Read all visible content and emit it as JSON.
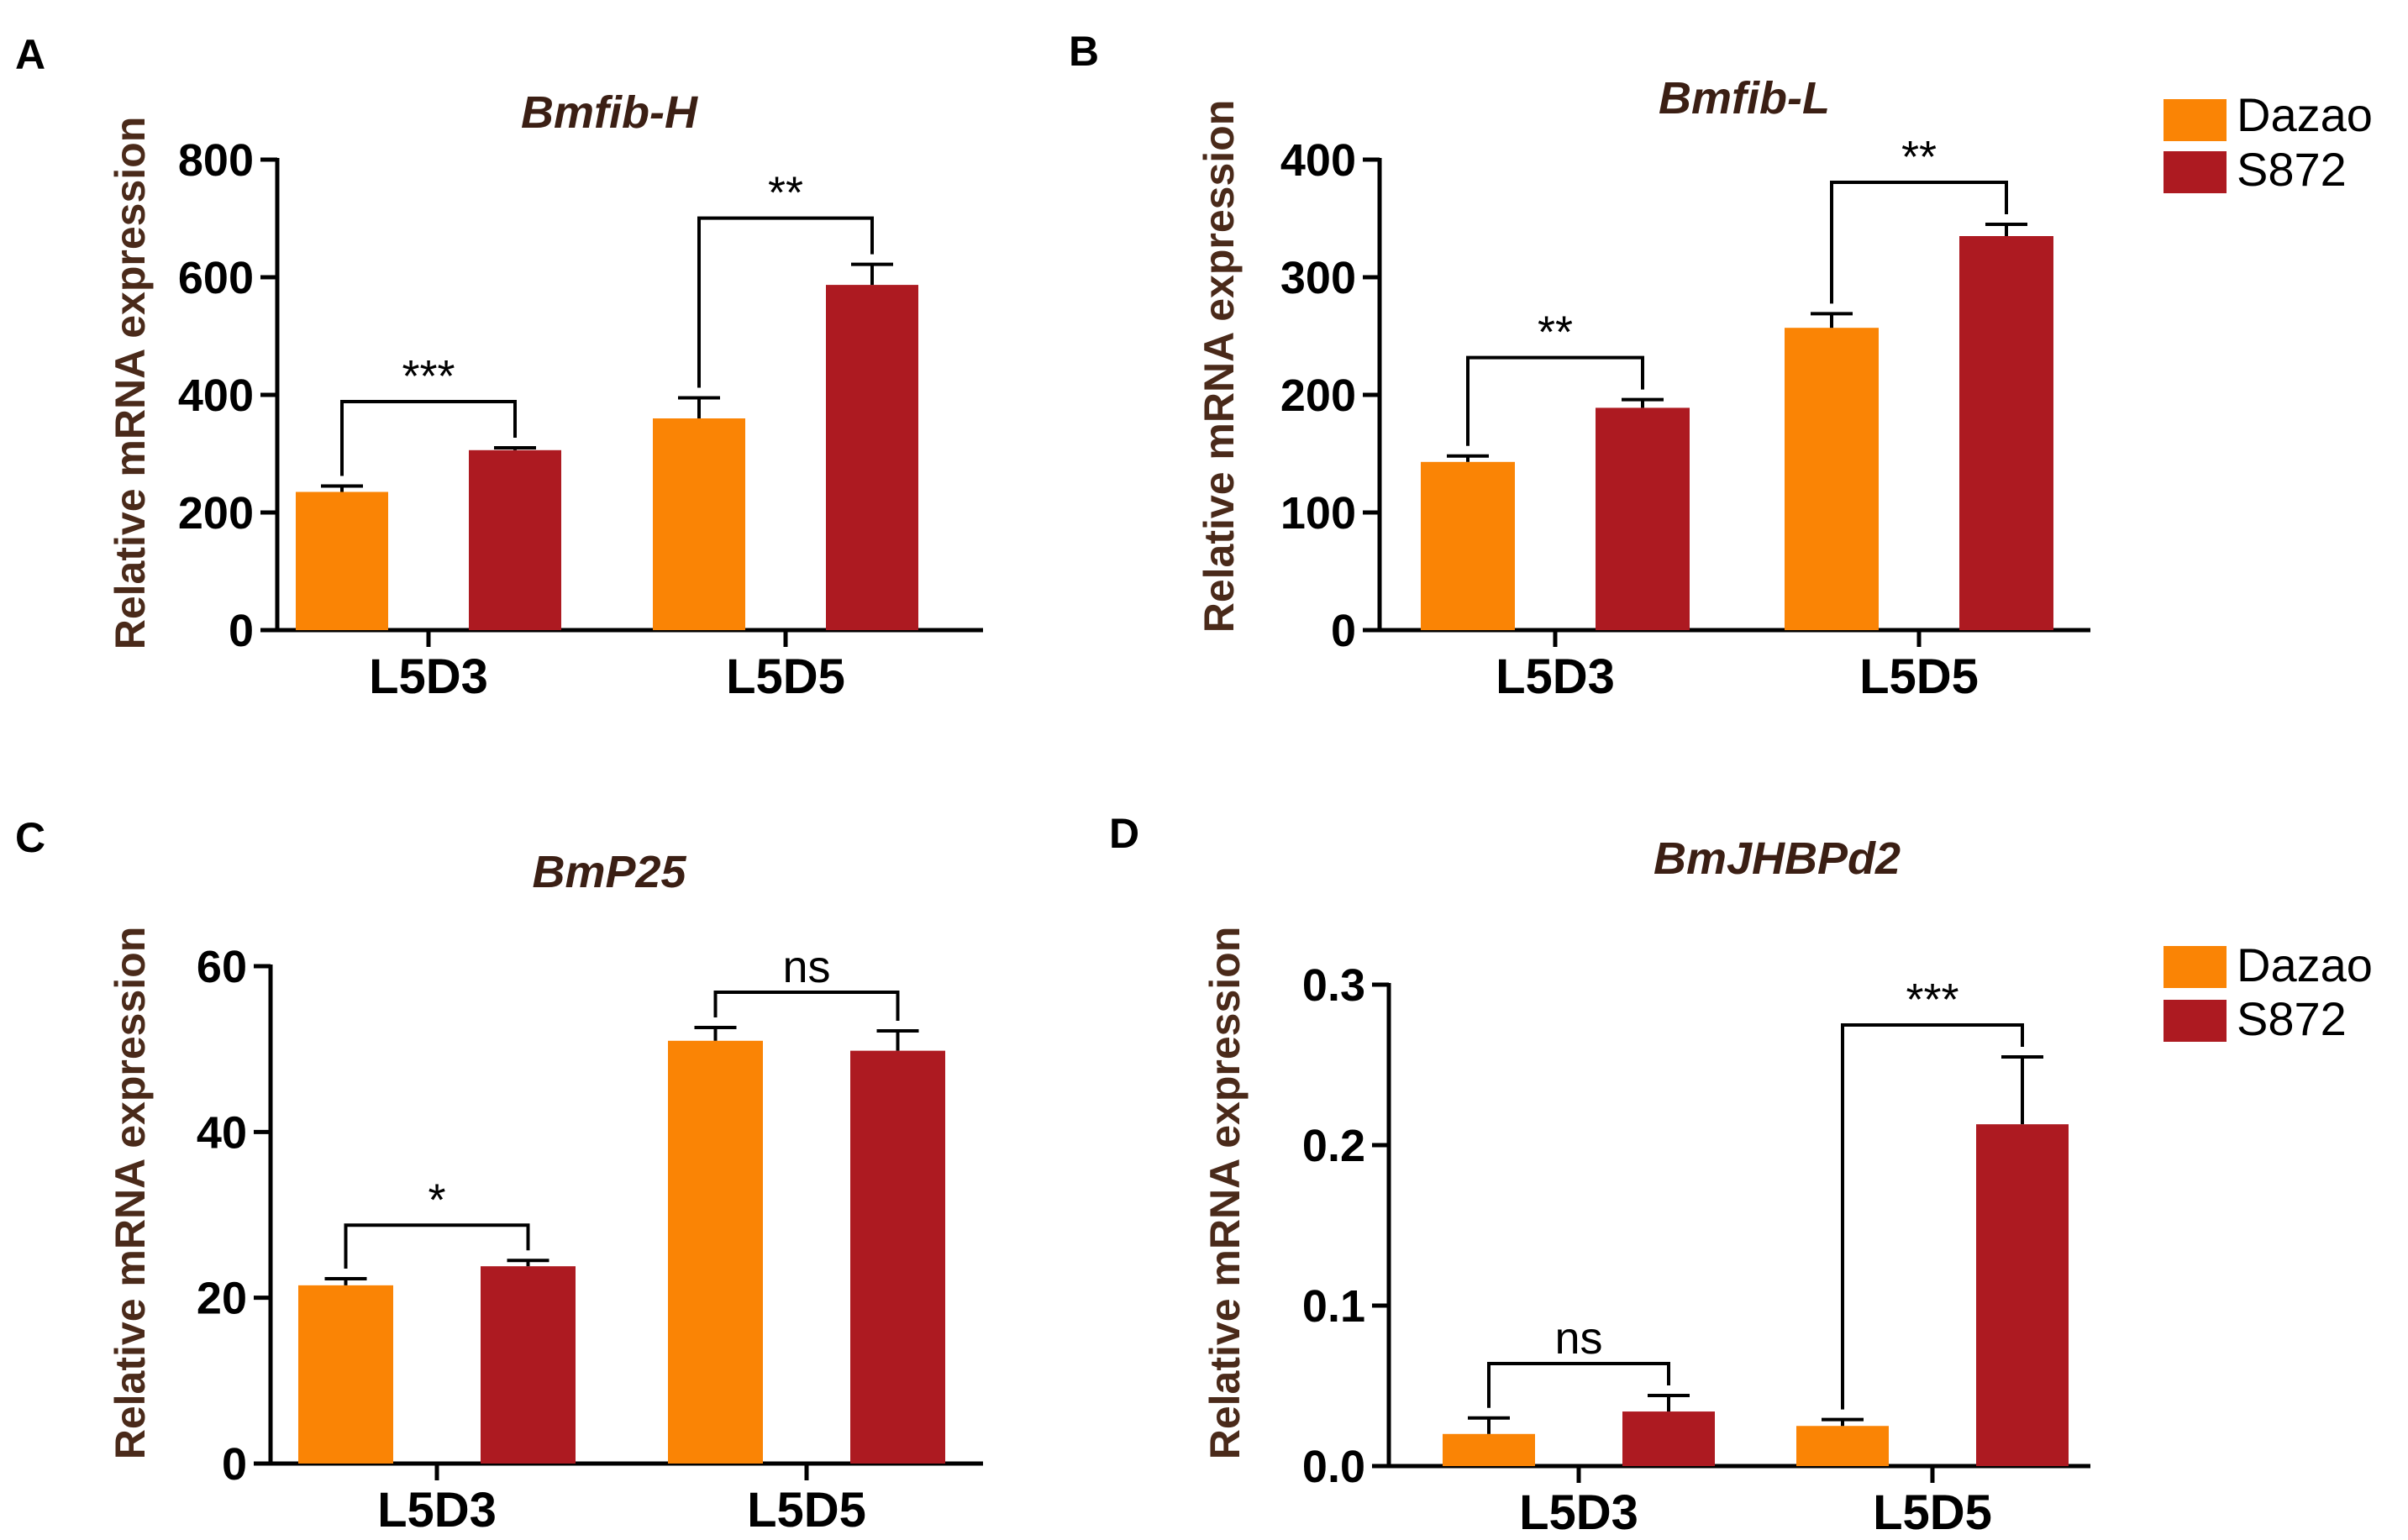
{
  "colors": {
    "Dazao": "#fa8405",
    "S872": "#ad1a21"
  },
  "legend": {
    "top": {
      "items": [
        {
          "name": "Dazao"
        },
        {
          "name": "S872"
        }
      ]
    },
    "bottom": {
      "items": [
        {
          "name": "Dazao"
        },
        {
          "name": "S872"
        }
      ]
    }
  },
  "chart_data": [
    {
      "panel": "A",
      "type": "bar",
      "title": "Bmfib-H",
      "xlabel": "",
      "ylabel": "Relative mRNA expression",
      "categories": [
        "L5D3",
        "L5D5"
      ],
      "series": [
        {
          "name": "Dazao",
          "values": [
            235,
            360
          ],
          "errors": [
            10,
            35
          ]
        },
        {
          "name": "S872",
          "values": [
            306,
            587
          ],
          "errors": [
            4,
            35
          ]
        }
      ],
      "ylim": [
        0,
        800
      ],
      "yticks": [
        0,
        200,
        400,
        600,
        800
      ],
      "ytick_labels": [
        "0",
        "200",
        "400",
        "600",
        "800"
      ],
      "significance": [
        {
          "category": "L5D3",
          "label": "***"
        },
        {
          "category": "L5D5",
          "label": "**"
        }
      ]
    },
    {
      "panel": "B",
      "type": "bar",
      "title": "Bmfib-L",
      "xlabel": "",
      "ylabel": "Relative mRNA expression",
      "categories": [
        "L5D3",
        "L5D5"
      ],
      "series": [
        {
          "name": "Dazao",
          "values": [
            143,
            257
          ],
          "errors": [
            5,
            12
          ]
        },
        {
          "name": "S872",
          "values": [
            189,
            335
          ],
          "errors": [
            7,
            10
          ]
        }
      ],
      "ylim": [
        0,
        400
      ],
      "yticks": [
        0,
        100,
        200,
        300,
        400
      ],
      "ytick_labels": [
        "0",
        "100",
        "200",
        "300",
        "400"
      ],
      "significance": [
        {
          "category": "L5D3",
          "label": "**"
        },
        {
          "category": "L5D5",
          "label": "**"
        }
      ]
    },
    {
      "panel": "C",
      "type": "bar",
      "title": "BmP25",
      "xlabel": "",
      "ylabel": "Relative mRNA expression",
      "categories": [
        "L5D3",
        "L5D5"
      ],
      "series": [
        {
          "name": "Dazao",
          "values": [
            21.5,
            51.0
          ],
          "errors": [
            0.8,
            1.6
          ]
        },
        {
          "name": "S872",
          "values": [
            23.8,
            49.8
          ],
          "errors": [
            0.7,
            2.4
          ]
        }
      ],
      "ylim": [
        0,
        60
      ],
      "yticks": [
        0,
        20,
        40,
        60
      ],
      "ytick_labels": [
        "0",
        "20",
        "40",
        "60"
      ],
      "significance": [
        {
          "category": "L5D3",
          "label": "*"
        },
        {
          "category": "L5D5",
          "label": "ns"
        }
      ]
    },
    {
      "panel": "D",
      "type": "bar",
      "title": "BmJHBPd2",
      "xlabel": "",
      "ylabel": "Relative mRNA expression",
      "categories": [
        "L5D3",
        "L5D5"
      ],
      "series": [
        {
          "name": "Dazao",
          "values": [
            0.02,
            0.025
          ],
          "errors": [
            0.01,
            0.004
          ]
        },
        {
          "name": "S872",
          "values": [
            0.034,
            0.213
          ],
          "errors": [
            0.01,
            0.042
          ]
        }
      ],
      "ylim": [
        0,
        0.3
      ],
      "yticks": [
        0,
        0.1,
        0.2,
        0.3
      ],
      "ytick_labels": [
        "0.0",
        "0.1",
        "0.2",
        "0.3"
      ],
      "significance": [
        {
          "category": "L5D3",
          "label": "ns"
        },
        {
          "category": "L5D5",
          "label": "***"
        }
      ]
    }
  ]
}
